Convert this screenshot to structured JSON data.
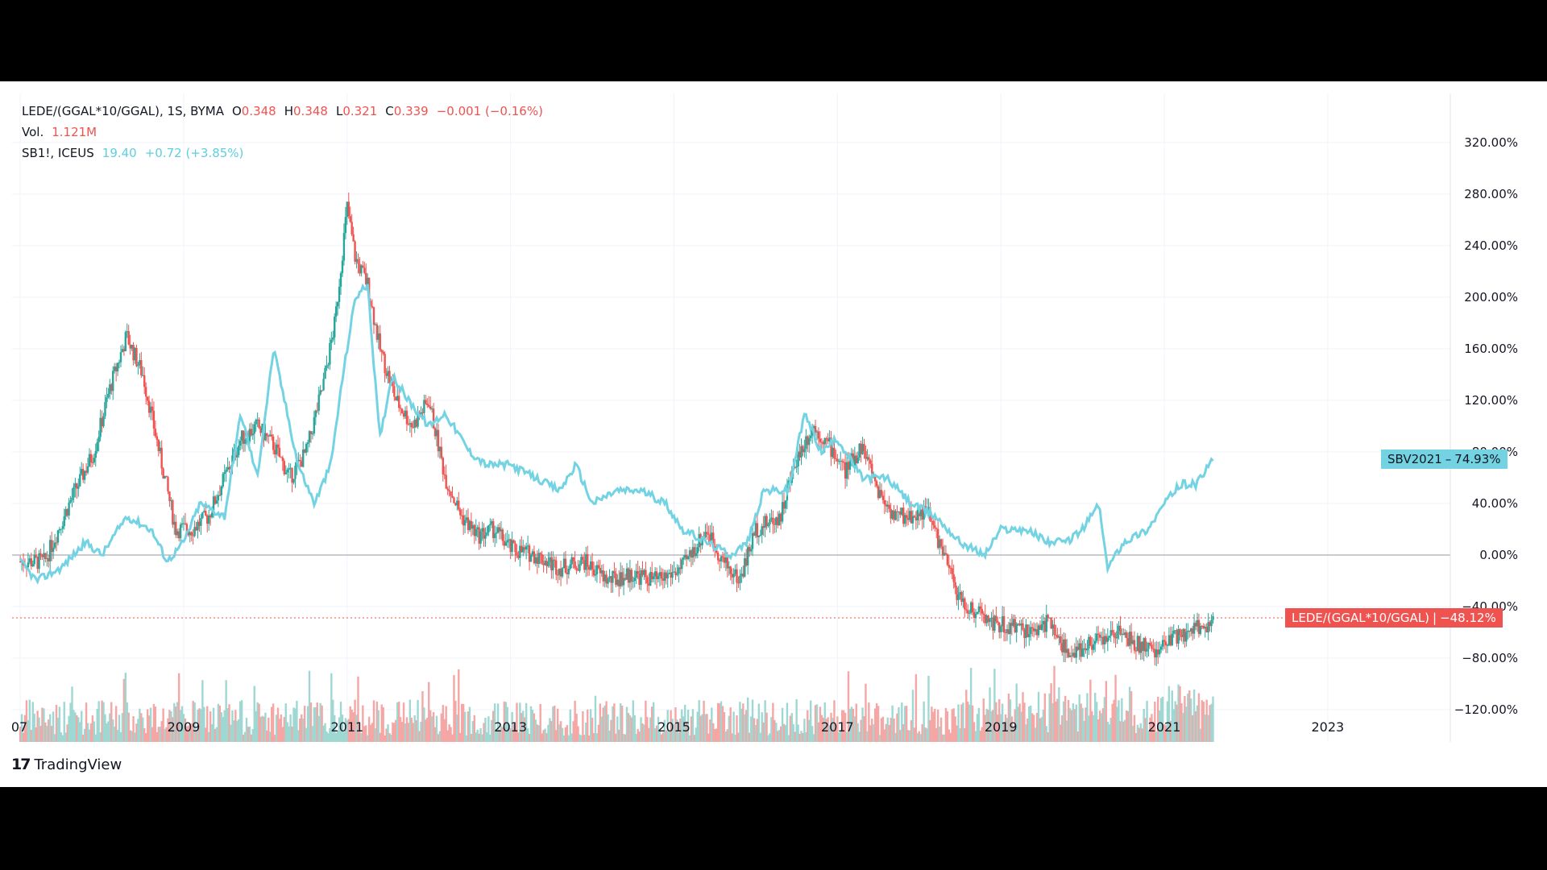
{
  "legend": {
    "main_symbol": "LEDE/(GGAL*10/GGAL), 1S, BYMA",
    "o_label": "O",
    "o_value": "0.348",
    "h_label": "H",
    "h_value": "0.348",
    "l_label": "L",
    "l_value": "0.321",
    "c_label": "C",
    "c_value": "0.339",
    "change": "−0.001 (−0.16%)",
    "vol_label": "Vol.",
    "vol_value": "1.121M",
    "compare_symbol": "SB1!, ICEUS",
    "compare_value": "19.40",
    "compare_change": "+0.72 (+3.85%)"
  },
  "labels": {
    "sbv_name": "SBV2021",
    "sbv_value": "74.93%",
    "lede_name": "LEDE/(GGAL*10/GGAL)",
    "lede_value": "−48.12%"
  },
  "brand": {
    "name": "TradingView"
  },
  "colors": {
    "up": "#26a69a",
    "down": "#ef5350",
    "compare": "#73d3e3",
    "vol_up": "#9fd8d3",
    "vol_down": "#f4a7a5"
  },
  "chart_data": {
    "type": "line",
    "x_range": [
      2006.9,
      2024.5
    ],
    "y_range": [
      -120,
      320
    ],
    "y_ticks": [
      "320.00%",
      "280.00%",
      "240.00%",
      "200.00%",
      "160.00%",
      "120.00%",
      "80.00%",
      "40.00%",
      "0.00%",
      "−40.00%",
      "−80.00%",
      "−120.00%"
    ],
    "x_ticks": [
      "07",
      "2009",
      "2011",
      "2013",
      "2015",
      "2017",
      "2019",
      "2021",
      "2023"
    ],
    "series": [
      {
        "name": "LEDE/(GGAL*10/GGAL)",
        "style": "candles",
        "x": [
          2007.0,
          2007.3,
          2007.6,
          2007.9,
          2008.1,
          2008.3,
          2008.5,
          2008.7,
          2008.9,
          2009.1,
          2009.3,
          2009.5,
          2009.7,
          2009.9,
          2010.1,
          2010.3,
          2010.5,
          2010.7,
          2010.85,
          2011.0,
          2011.1,
          2011.25,
          2011.4,
          2011.6,
          2011.8,
          2012.0,
          2012.2,
          2012.4,
          2012.6,
          2012.8,
          2013.0,
          2013.3,
          2013.6,
          2013.9,
          2014.2,
          2014.5,
          2014.8,
          2015.1,
          2015.4,
          2015.6,
          2015.8,
          2016.0,
          2016.3,
          2016.5,
          2016.7,
          2016.9,
          2017.1,
          2017.3,
          2017.5,
          2017.7,
          2017.9,
          2018.1,
          2018.3,
          2018.5,
          2018.8,
          2019.1,
          2019.4,
          2019.6,
          2019.8,
          2020.1,
          2020.4,
          2020.7,
          2020.9,
          2021.1,
          2021.3,
          2021.5,
          2021.6
        ],
        "values": [
          -5,
          -5,
          40,
          80,
          130,
          170,
          140,
          80,
          20,
          20,
          30,
          60,
          90,
          100,
          85,
          60,
          80,
          130,
          180,
          270,
          230,
          210,
          160,
          120,
          100,
          120,
          60,
          30,
          15,
          20,
          5,
          0,
          -10,
          -5,
          -20,
          -15,
          -20,
          -10,
          20,
          -5,
          -20,
          20,
          30,
          75,
          100,
          85,
          65,
          85,
          50,
          30,
          30,
          35,
          0,
          -35,
          -50,
          -55,
          -60,
          -50,
          -75,
          -70,
          -60,
          -70,
          -75,
          -65,
          -60,
          -55,
          -48
        ]
      },
      {
        "name": "SBV2021",
        "style": "line",
        "x": [
          2007.0,
          2007.2,
          2007.5,
          2007.8,
          2008.0,
          2008.3,
          2008.6,
          2008.8,
          2009.0,
          2009.2,
          2009.5,
          2009.7,
          2009.9,
          2010.1,
          2010.4,
          2010.6,
          2010.8,
          2010.95,
          2011.1,
          2011.25,
          2011.4,
          2011.55,
          2011.75,
          2012.0,
          2012.2,
          2012.5,
          2012.7,
          2013.0,
          2013.3,
          2013.6,
          2013.8,
          2014.0,
          2014.3,
          2014.6,
          2014.9,
          2015.1,
          2015.4,
          2015.7,
          2015.9,
          2016.1,
          2016.4,
          2016.6,
          2016.8,
          2017.0,
          2017.3,
          2017.6,
          2017.9,
          2018.2,
          2018.5,
          2018.8,
          2019.0,
          2019.3,
          2019.6,
          2019.8,
          2020.0,
          2020.2,
          2020.3,
          2020.5,
          2020.8,
          2021.0,
          2021.2,
          2021.4,
          2021.6
        ],
        "values": [
          -5,
          -20,
          -10,
          10,
          0,
          30,
          20,
          -5,
          10,
          40,
          30,
          110,
          60,
          160,
          70,
          40,
          70,
          140,
          200,
          210,
          90,
          140,
          120,
          100,
          110,
          80,
          70,
          70,
          60,
          50,
          70,
          40,
          50,
          50,
          40,
          20,
          10,
          0,
          10,
          50,
          50,
          110,
          80,
          90,
          60,
          60,
          40,
          30,
          10,
          0,
          20,
          20,
          10,
          10,
          20,
          40,
          -10,
          10,
          20,
          40,
          55,
          55,
          75
        ]
      }
    ]
  }
}
